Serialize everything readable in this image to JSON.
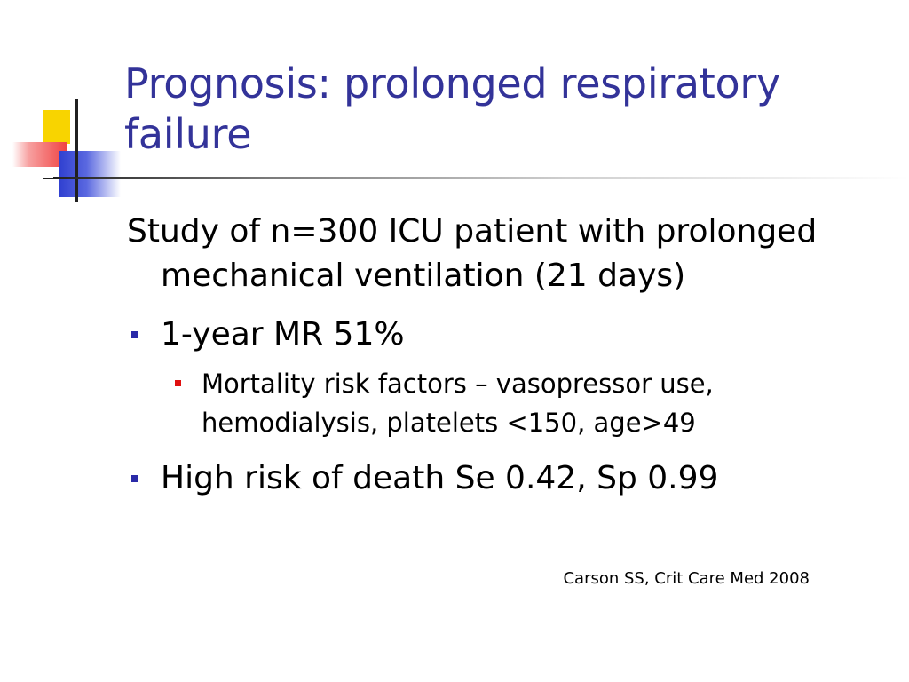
{
  "slide": {
    "title": "Prognosis:  prolonged respiratory failure",
    "intro": "Study of n=300 ICU patient with prolonged mechanical ventilation (21 days)",
    "bullets": [
      {
        "text": "1-year MR 51%",
        "sub": [
          "Mortality risk factors – vasopressor use, hemodialysis, platelets <150, age>49"
        ]
      },
      {
        "text": "High risk of death Se 0.42, Sp 0.99",
        "sub": []
      }
    ],
    "citation": "Carson SS, Crit Care Med 2008"
  },
  "colors": {
    "title": "#333399",
    "bullet_level1": "#2a2aa8",
    "bullet_level2": "#e01010",
    "logo_yellow": "#f8d400",
    "logo_red": "#f04040",
    "logo_blue": "#2f3fd0"
  },
  "icons": {
    "logo": "decorative-squares-logo-icon",
    "bullet_level1": "square-bullet-icon",
    "bullet_level2": "small-square-bullet-icon"
  }
}
